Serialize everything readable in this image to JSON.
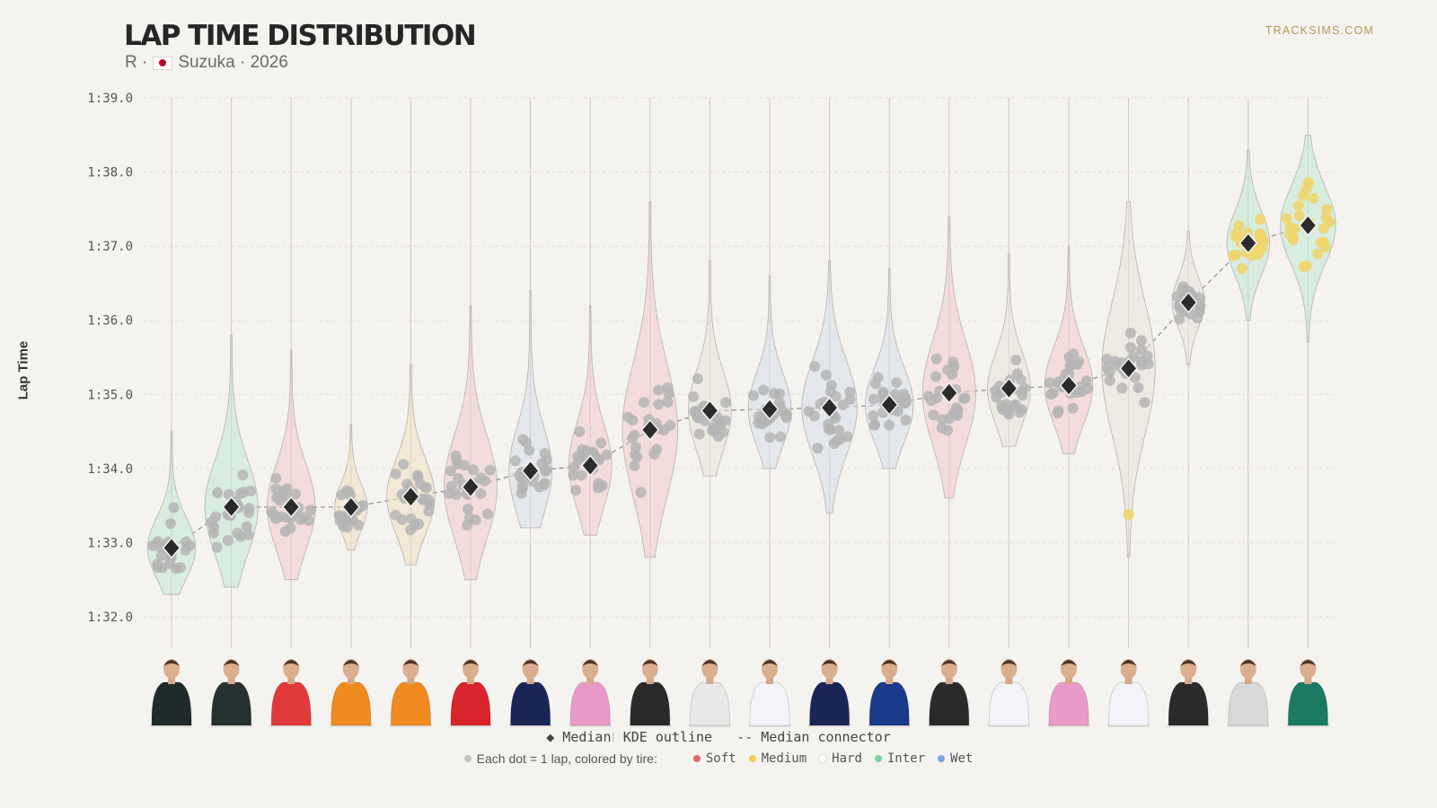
{
  "header": {
    "title": "LAP TIME DISTRIBUTION",
    "session": "R ·",
    "track": "Suzuka · 2026",
    "brand": "TRACKSIMS.COM"
  },
  "legend": {
    "median": "◆ Median",
    "sep": "⁞",
    "kde": "KDE outline",
    "connector": "-- Median connector",
    "dots_note": "Each dot = 1 lap, colored by tire:",
    "tires": [
      {
        "label": "Soft",
        "color": "#e06a6a"
      },
      {
        "label": "Medium",
        "color": "#ecd05a"
      },
      {
        "label": "Hard",
        "color": "#ffffff"
      },
      {
        "label": "Inter",
        "color": "#7ed3a0"
      },
      {
        "label": "Wet",
        "color": "#7fa6e0"
      }
    ]
  },
  "chart_data": {
    "type": "violin",
    "title": "LAP TIME DISTRIBUTION",
    "ylabel": "Lap Time",
    "yticks": [
      "1:32.0",
      "1:33.0",
      "1:34.0",
      "1:35.0",
      "1:36.0",
      "1:37.0",
      "1:38.0",
      "1:39.0"
    ],
    "ylim": [
      92.0,
      99.0
    ],
    "grid": true,
    "series": [
      {
        "suit": "#1f2a2a",
        "kde": "#bfe6d2",
        "median": 92.93,
        "min": 92.3,
        "max": 94.5,
        "spread": 0.45,
        "dot": "#b5b5b5",
        "extra": []
      },
      {
        "suit": "#253030",
        "kde": "#bfe6d2",
        "median": 93.48,
        "min": 92.4,
        "max": 95.8,
        "spread": 0.5,
        "dot": "#b5b5b5",
        "extra": []
      },
      {
        "suit": "#e23a3a",
        "kde": "#f0c8cc",
        "median": 93.48,
        "min": 92.5,
        "max": 95.6,
        "spread": 0.45,
        "dot": "#b5b5b5",
        "extra": []
      },
      {
        "suit": "#f08a1e",
        "kde": "#f0dcc0",
        "median": 93.48,
        "min": 92.9,
        "max": 94.6,
        "spread": 0.3,
        "dot": "#b5b5b5",
        "extra": []
      },
      {
        "suit": "#f08a1e",
        "kde": "#f0dcc0",
        "median": 93.62,
        "min": 92.7,
        "max": 95.4,
        "spread": 0.45,
        "dot": "#b5b5b5",
        "extra": []
      },
      {
        "suit": "#d8242a",
        "kde": "#f0c8cc",
        "median": 93.75,
        "min": 92.5,
        "max": 96.2,
        "spread": 0.5,
        "dot": "#b5b5b5",
        "extra": []
      },
      {
        "suit": "#1a2555",
        "kde": "#d6dce8",
        "median": 93.97,
        "min": 93.2,
        "max": 96.4,
        "spread": 0.4,
        "dot": "#b5b5b5",
        "extra": []
      },
      {
        "suit": "#e89ac8",
        "kde": "#f0c8cc",
        "median": 94.04,
        "min": 93.1,
        "max": 96.2,
        "spread": 0.4,
        "dot": "#b5b5b5",
        "extra": []
      },
      {
        "suit": "#2a2a2a",
        "kde": "#f0c8cc",
        "median": 94.52,
        "min": 92.8,
        "max": 97.6,
        "spread": 0.8,
        "dot": "#b5b5b5",
        "extra": []
      },
      {
        "suit": "#e8e8e8",
        "kde": "#e6e2da",
        "median": 94.78,
        "min": 93.9,
        "max": 96.8,
        "spread": 0.4,
        "dot": "#b5b5b5",
        "extra": []
      },
      {
        "suit": "#f2f4fa",
        "kde": "#d6dce8",
        "median": 94.8,
        "min": 94.0,
        "max": 96.6,
        "spread": 0.4,
        "dot": "#b5b5b5",
        "extra": []
      },
      {
        "suit": "#1a2555",
        "kde": "#d6dce8",
        "median": 94.82,
        "min": 93.4,
        "max": 96.8,
        "spread": 0.6,
        "dot": "#b5b5b5",
        "extra": []
      },
      {
        "suit": "#1a3a8a",
        "kde": "#d6dce8",
        "median": 94.86,
        "min": 94.0,
        "max": 96.7,
        "spread": 0.45,
        "dot": "#b5b5b5",
        "extra": []
      },
      {
        "suit": "#2a2a2a",
        "kde": "#f0c8cc",
        "median": 95.02,
        "min": 93.6,
        "max": 97.4,
        "spread": 0.5,
        "dot": "#b5b5b5",
        "extra": []
      },
      {
        "suit": "#f2f4fa",
        "kde": "#e6e2da",
        "median": 95.08,
        "min": 94.3,
        "max": 96.9,
        "spread": 0.4,
        "dot": "#b5b5b5",
        "extra": []
      },
      {
        "suit": "#e89ac8",
        "kde": "#f0c8cc",
        "median": 95.12,
        "min": 94.2,
        "max": 97.0,
        "spread": 0.45,
        "dot": "#b5b5b5",
        "extra": []
      },
      {
        "suit": "#f2f4fa",
        "kde": "#e6e2da",
        "median": 95.35,
        "min": 92.8,
        "max": 97.6,
        "spread": 0.5,
        "dot": "#b5b5b5",
        "extra": [
          {
            "t": 93.38,
            "c": "#f0d56a"
          }
        ]
      },
      {
        "suit": "#2a2a2a",
        "kde": "#e6e2da",
        "median": 96.24,
        "min": 95.4,
        "max": 97.2,
        "spread": 0.3,
        "dot": "#b5b5b5",
        "extra": []
      },
      {
        "suit": "#d8d8d8",
        "kde": "#bfe6d2",
        "median": 97.04,
        "min": 96.0,
        "max": 98.3,
        "spread": 0.4,
        "dot": "#f0d56a",
        "extra": []
      },
      {
        "suit": "#1a7a62",
        "kde": "#bfe6d2",
        "median": 97.28,
        "min": 95.7,
        "max": 98.5,
        "spread": 0.55,
        "dot": "#f0d56a",
        "extra": []
      }
    ]
  }
}
